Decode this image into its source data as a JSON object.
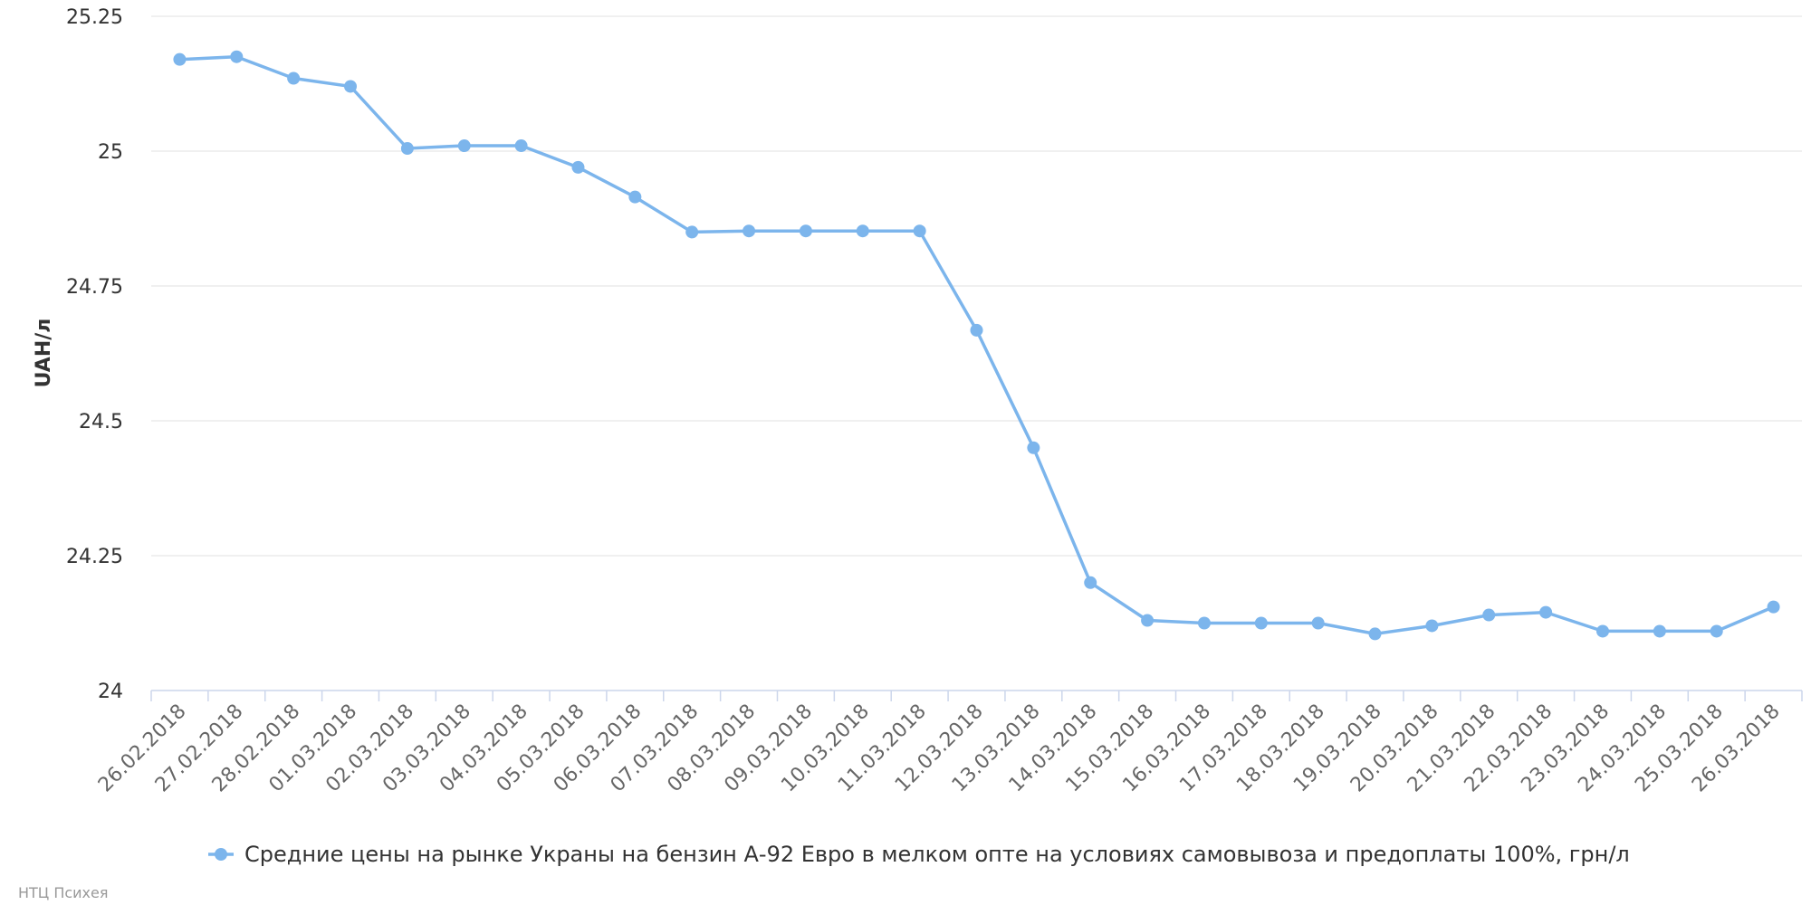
{
  "chart_data": {
    "type": "line",
    "title": "",
    "xlabel": "",
    "ylabel": "UAH/л",
    "ylim": [
      24,
      25.25
    ],
    "yticks": [
      "24",
      "24.25",
      "24.5",
      "24.75",
      "25",
      "25.25"
    ],
    "ytick_values": [
      24,
      24.25,
      24.5,
      24.75,
      25,
      25.25
    ],
    "grid": true,
    "legend_position": "bottom",
    "categories": [
      "26.02.2018",
      "27.02.2018",
      "28.02.2018",
      "01.03.2018",
      "02.03.2018",
      "03.03.2018",
      "04.03.2018",
      "05.03.2018",
      "06.03.2018",
      "07.03.2018",
      "08.03.2018",
      "09.03.2018",
      "10.03.2018",
      "11.03.2018",
      "12.03.2018",
      "13.03.2018",
      "14.03.2018",
      "15.03.2018",
      "16.03.2018",
      "17.03.2018",
      "18.03.2018",
      "19.03.2018",
      "20.03.2018",
      "21.03.2018",
      "22.03.2018",
      "23.03.2018",
      "24.03.2018",
      "25.03.2018",
      "26.03.2018"
    ],
    "series": [
      {
        "name": "Средние цены на рынке Украны на бензин А-92 Евро в мелком опте на условиях самовывоза и предоплаты 100%, грн/л",
        "color": "#7cb5ec",
        "values": [
          25.17,
          25.175,
          25.135,
          25.12,
          25.005,
          25.01,
          25.01,
          24.97,
          24.915,
          24.85,
          24.852,
          24.852,
          24.852,
          24.852,
          24.668,
          24.45,
          24.2,
          24.13,
          24.125,
          24.125,
          24.125,
          24.105,
          24.12,
          24.14,
          24.145,
          24.11,
          24.11,
          24.11,
          24.155
        ]
      }
    ]
  },
  "credits": "НТЦ Психея"
}
